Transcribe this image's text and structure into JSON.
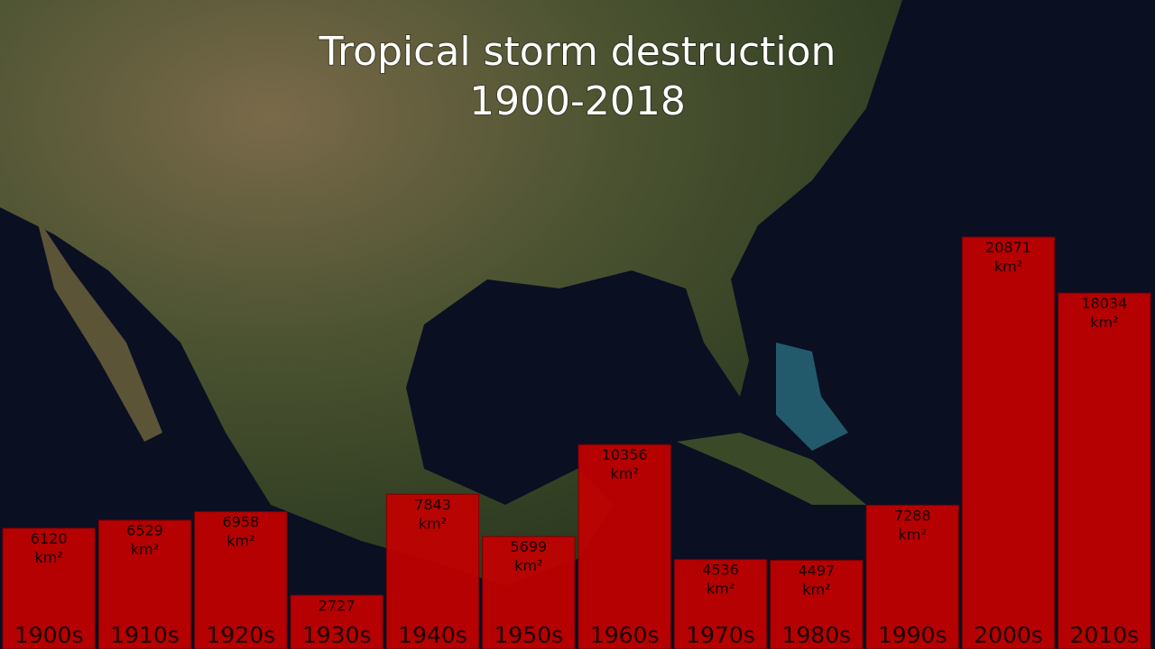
{
  "chart_data": {
    "type": "bar",
    "title": "Tropical storm destruction",
    "subtitle": "1900-2018",
    "unit": "km²",
    "categories": [
      "1900s",
      "1910s",
      "1920s",
      "1930s",
      "1940s",
      "1950s",
      "1960s",
      "1970s",
      "1980s",
      "1990s",
      "2000s",
      "2010s"
    ],
    "values": [
      6120,
      6529,
      6958,
      2727,
      7843,
      5699,
      10356,
      4536,
      4497,
      7288,
      20871,
      18034
    ],
    "color": "#c40000"
  }
}
